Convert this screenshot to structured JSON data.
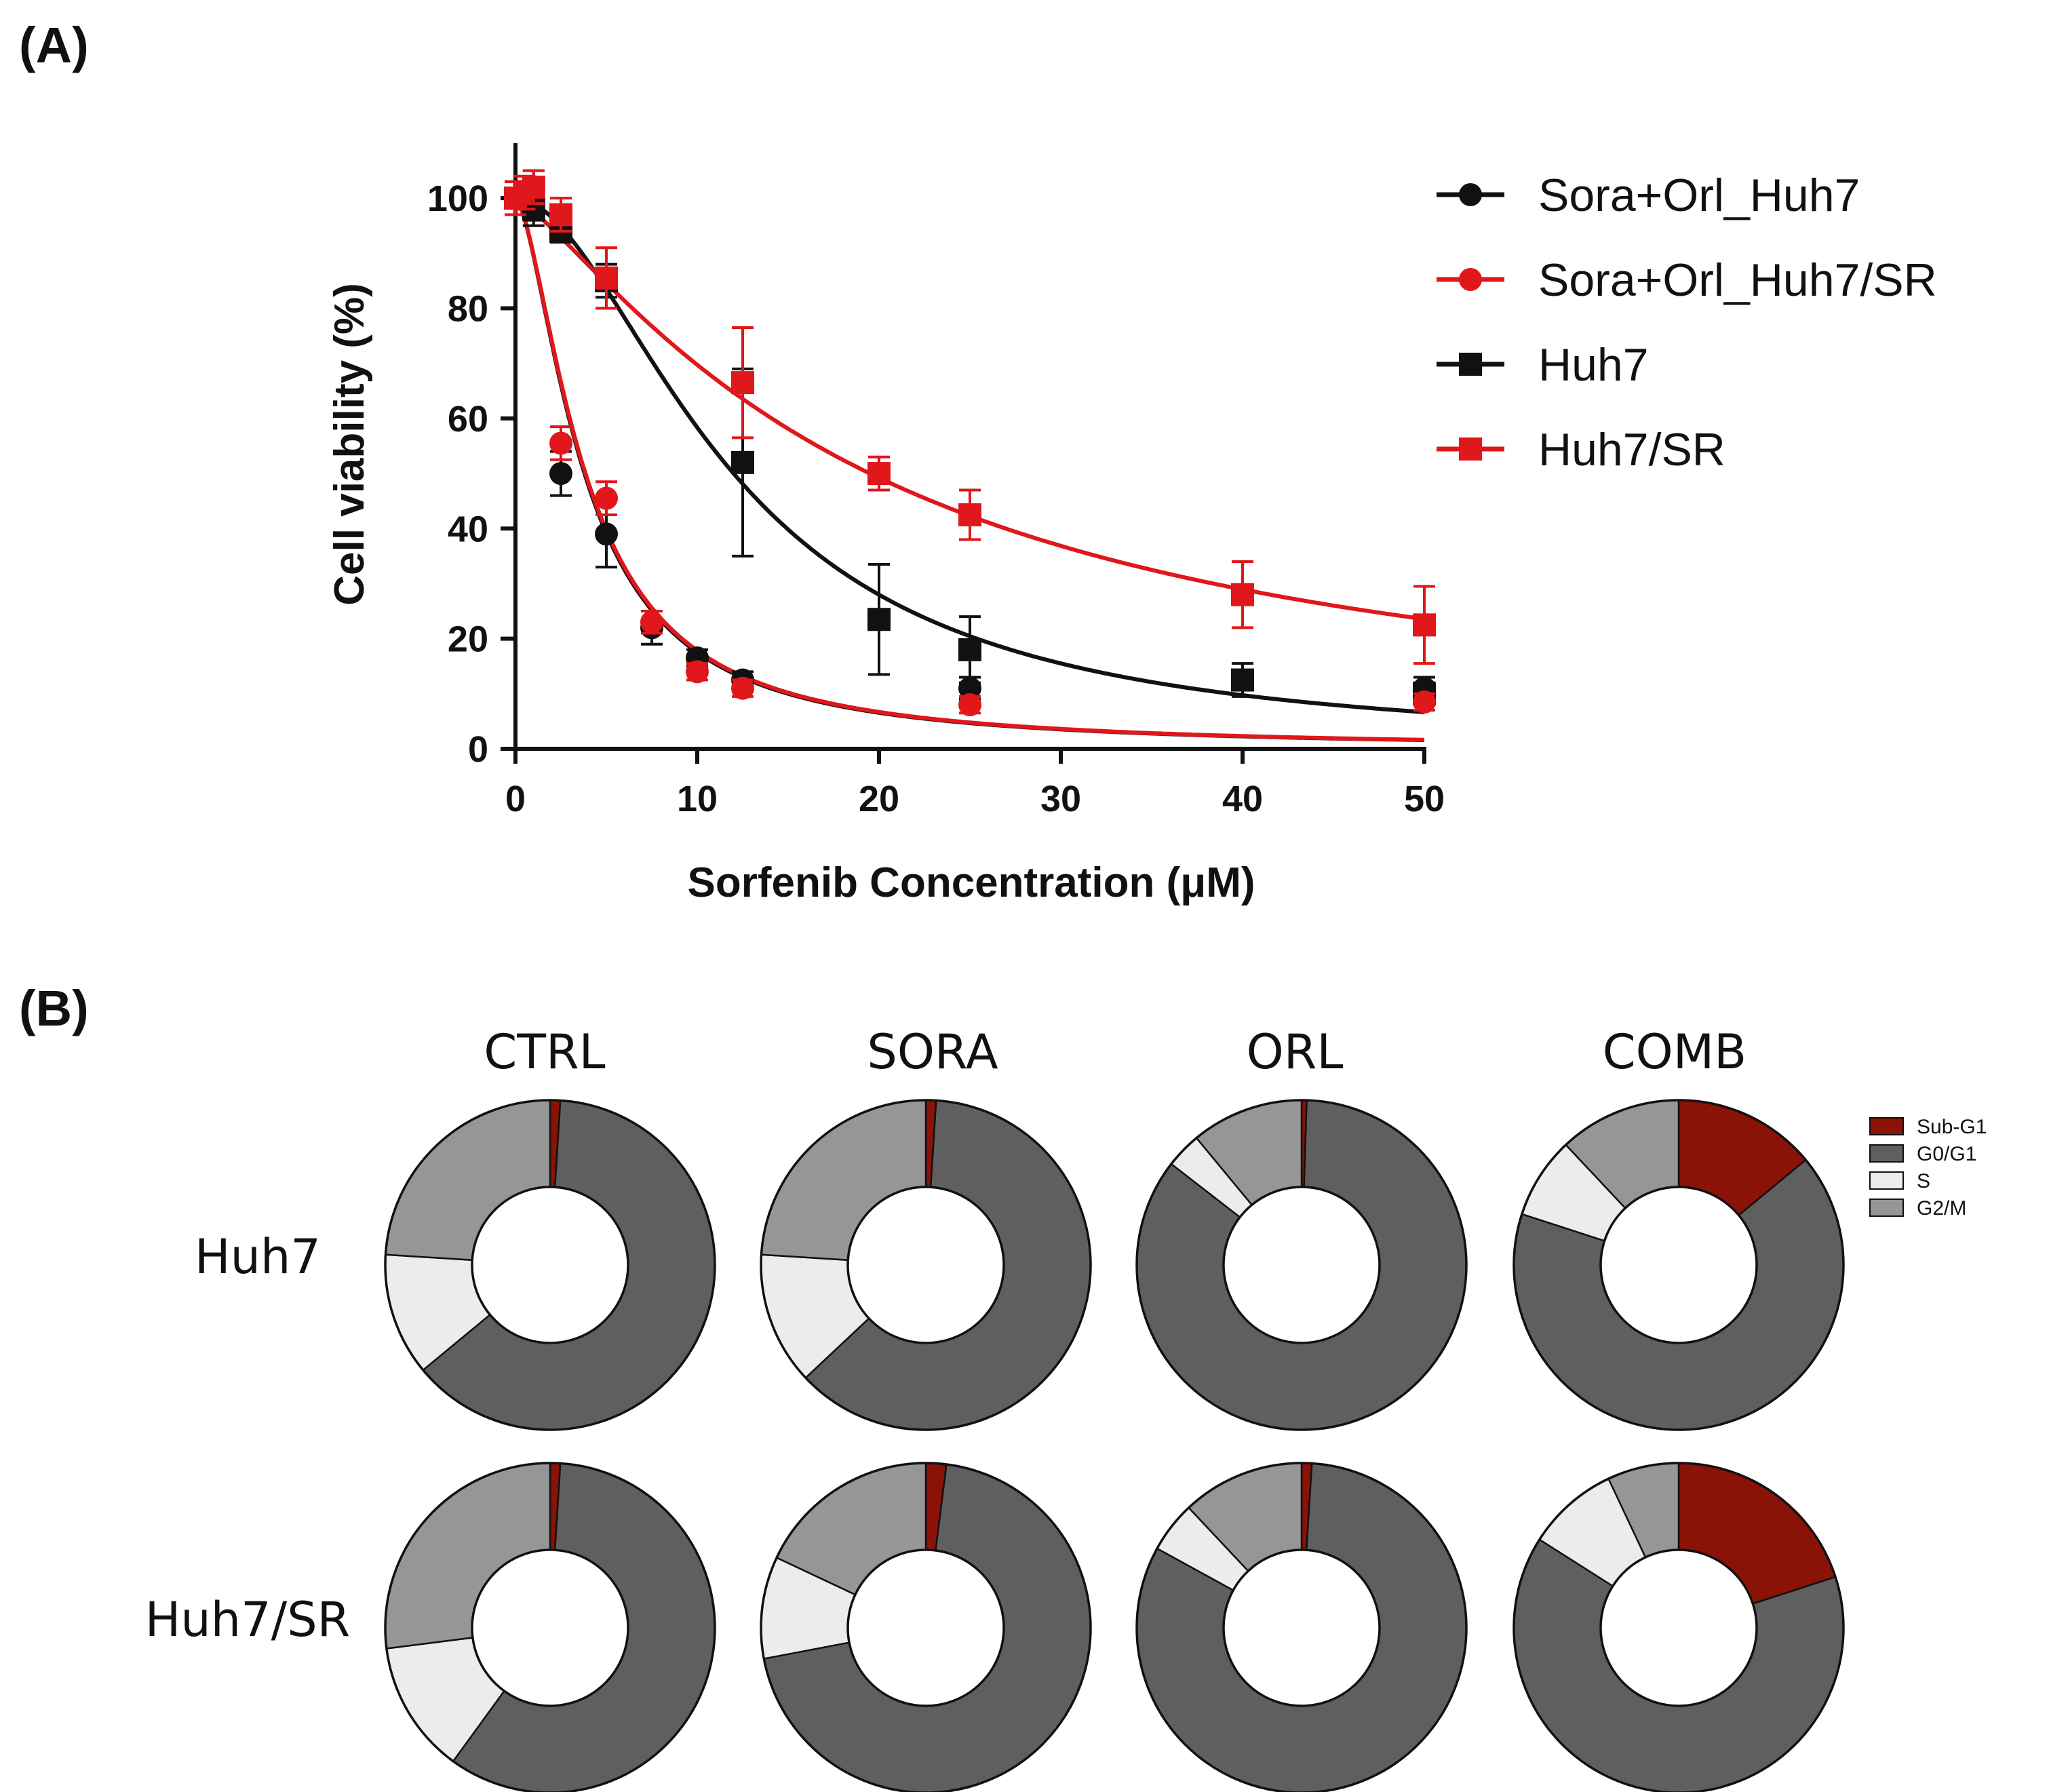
{
  "panel_a_label": "(A)",
  "panel_b_label": "(B)",
  "chart_data": [
    {
      "type": "scatter",
      "title": "",
      "xlabel": "Sorfenib Concentration (μM)",
      "ylabel": "Cell viability (%)",
      "xlim": [
        0,
        50
      ],
      "ylim": [
        0,
        110
      ],
      "xticks": [
        "0",
        "10",
        "20",
        "30",
        "40",
        "50"
      ],
      "yticks": [
        "0",
        "20",
        "40",
        "60",
        "80",
        "100"
      ],
      "legend_position": "top-right",
      "series": [
        {
          "name": "Sora+Orl_Huh7",
          "color": "#111111",
          "marker": "circle",
          "x": [
            0,
            0.5,
            1,
            2.5,
            5,
            7.5,
            10,
            12.5,
            25,
            50
          ],
          "y": [
            100,
            100,
            99,
            50,
            39,
            22,
            16.5,
            12.5,
            11,
            11
          ],
          "err": [
            3,
            3,
            3,
            4,
            6,
            3,
            1.5,
            1.5,
            2,
            2
          ],
          "fit_ic50": 3.8,
          "fit_hill": 1.6
        },
        {
          "name": "Sora+Orl_Huh7/SR",
          "color": "#e0171b",
          "marker": "circle",
          "x": [
            0,
            0.5,
            1,
            2.5,
            5,
            7.5,
            10,
            12.5,
            25,
            50
          ],
          "y": [
            100,
            101,
            102,
            55.5,
            45.5,
            23,
            14,
            11,
            8,
            8.5
          ],
          "err": [
            3,
            3,
            3,
            3,
            3,
            2,
            1.5,
            1.5,
            1.5,
            1.5
          ],
          "fit_ic50": 3.85,
          "fit_hill": 1.6
        },
        {
          "name": "Huh7",
          "color": "#111111",
          "marker": "square",
          "x": [
            0,
            1,
            2.5,
            5,
            12.5,
            20,
            25,
            40,
            50
          ],
          "y": [
            100,
            98,
            94,
            85,
            52,
            23.5,
            18,
            12.5,
            10
          ],
          "err": [
            3,
            3,
            2,
            3,
            17,
            10,
            6,
            3,
            2
          ],
          "fit_ic50": 12.0,
          "fit_hill": 1.85
        },
        {
          "name": "Huh7/SR",
          "color": "#e0171b",
          "marker": "square",
          "x": [
            0,
            1,
            2.5,
            5,
            12.5,
            20,
            25,
            40,
            50
          ],
          "y": [
            100,
            102,
            97,
            85.5,
            66.5,
            50,
            42.5,
            28,
            22.5
          ],
          "err": [
            3,
            3,
            3,
            5.5,
            10,
            3,
            4.5,
            6,
            7
          ],
          "fit_ic50": 19.5,
          "fit_hill": 1.25
        }
      ]
    },
    {
      "type": "pie",
      "subtype": "donut-grid",
      "phases": [
        "Sub-G1",
        "G0/G1",
        "S",
        "G2/M"
      ],
      "phase_colors": [
        "#8b1207",
        "#5f5f5f",
        "#ececec",
        "#969696"
      ],
      "columns": [
        "CTRL",
        "SORA",
        "ORL",
        "COMB"
      ],
      "rows": [
        "Huh7",
        "Huh7/SR"
      ],
      "values_percent": [
        [
          [
            1,
            63,
            12,
            24
          ],
          [
            1,
            62,
            13,
            24
          ],
          [
            0.5,
            85,
            3.5,
            11
          ],
          [
            14,
            66,
            8,
            12
          ]
        ],
        [
          [
            1,
            59,
            13,
            27
          ],
          [
            2,
            70,
            10,
            18
          ],
          [
            1,
            82,
            5,
            12
          ],
          [
            20,
            64,
            9,
            7
          ]
        ]
      ]
    }
  ]
}
